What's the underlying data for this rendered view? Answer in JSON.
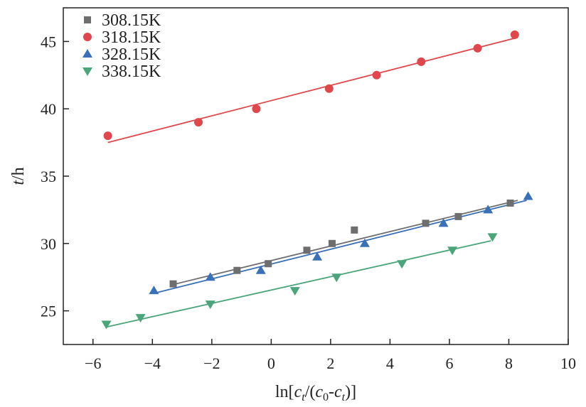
{
  "chart_data": {
    "type": "scatter",
    "title": "",
    "xlabel": "ln[ct/(c0-ct)]",
    "xlabel_parts": {
      "base": "ln[",
      "c1": "c",
      "sub_t1": "t",
      "slash": "/(",
      "c2": "c",
      "sub_02": "0",
      "dash": "-",
      "c3": "c",
      "sub_t3": "t",
      "close": ")]"
    },
    "ylabel": "t/h",
    "ylabel_parts": {
      "italic": "t",
      "rest": "/h"
    },
    "xlim": [
      -7,
      10
    ],
    "ylim": [
      22.5,
      47.5
    ],
    "xticks": [
      -6,
      -4,
      -2,
      0,
      2,
      4,
      6,
      8,
      10
    ],
    "xtick_labels": [
      "−6",
      "−4",
      "−2",
      "0",
      "2",
      "4",
      "6",
      "8",
      "10"
    ],
    "yticks": [
      25,
      30,
      35,
      40,
      45
    ],
    "ytick_labels": [
      "25",
      "30",
      "35",
      "40",
      "45"
    ],
    "grid": false,
    "legend_position": "top-left",
    "series": [
      {
        "name": "308.15K",
        "marker": "square",
        "color": "#6e6e6e",
        "x": [
          -3.3,
          -1.15,
          -0.1,
          1.2,
          2.05,
          2.8,
          5.2,
          6.3,
          8.05
        ],
        "y": [
          27.0,
          28.0,
          28.5,
          29.5,
          30.0,
          31.0,
          31.5,
          32.0,
          33.0
        ],
        "fit_line": {
          "x": [
            -3.4,
            8.3
          ],
          "y": [
            26.9,
            33.2
          ]
        }
      },
      {
        "name": "318.15K",
        "marker": "circle",
        "color": "#e0474c",
        "x": [
          -5.5,
          -2.45,
          -0.5,
          1.95,
          3.55,
          5.05,
          6.95,
          8.2
        ],
        "y": [
          38.0,
          39.0,
          40.0,
          41.5,
          42.5,
          43.5,
          44.5,
          45.5
        ],
        "fit_line": {
          "x": [
            -5.5,
            8.3
          ],
          "y": [
            37.5,
            45.3
          ]
        }
      },
      {
        "name": "328.15K",
        "marker": "triangle-up",
        "color": "#3a70b8",
        "x": [
          -3.95,
          -2.05,
          -0.35,
          1.55,
          3.15,
          5.8,
          7.3,
          8.65
        ],
        "y": [
          26.5,
          27.5,
          28.0,
          29.0,
          30.0,
          31.5,
          32.5,
          33.5
        ],
        "fit_line": {
          "x": [
            -3.95,
            8.6
          ],
          "y": [
            26.3,
            33.2
          ]
        }
      },
      {
        "name": "338.15K",
        "marker": "triangle-down",
        "color": "#4aa57a",
        "x": [
          -5.55,
          -4.4,
          -2.05,
          0.8,
          2.2,
          4.4,
          6.1,
          7.45
        ],
        "y": [
          24.0,
          24.5,
          25.5,
          26.5,
          27.5,
          28.5,
          29.5,
          30.5
        ],
        "fit_line": {
          "x": [
            -5.55,
            7.4
          ],
          "y": [
            23.8,
            30.2
          ]
        }
      }
    ]
  }
}
